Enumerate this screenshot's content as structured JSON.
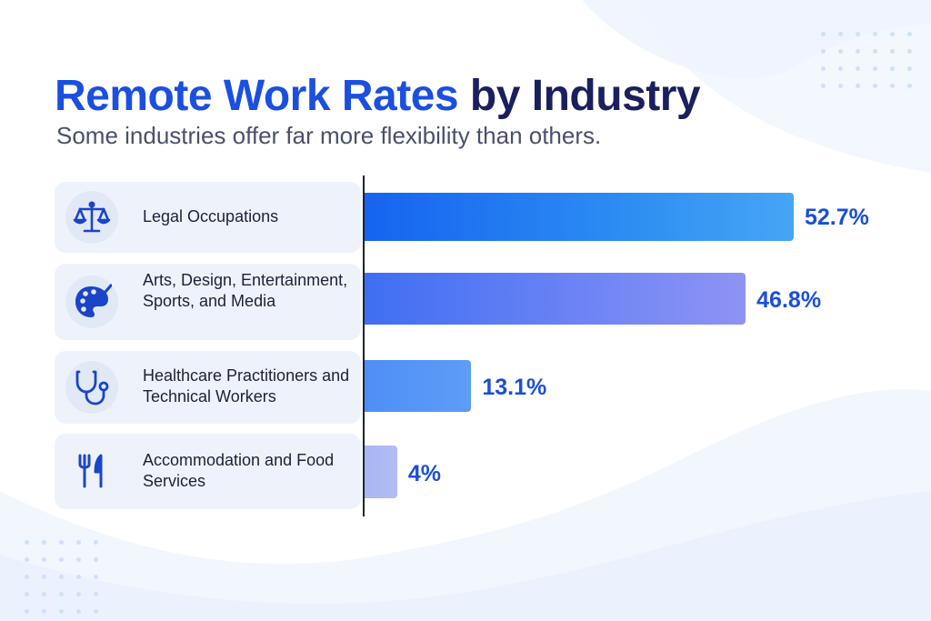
{
  "header": {
    "title_accent": "Remote Work Rates",
    "title_rest": " by Industry",
    "subtitle": "Some industries offer far more flexibility than others."
  },
  "chart_data": {
    "type": "bar",
    "orientation": "horizontal",
    "title": "Remote Work Rates by Industry",
    "subtitle": "Some industries offer far more flexibility than others.",
    "categories": [
      "Legal Occupations",
      "Arts, Design, Entertainment, Sports, and Media",
      "Healthcare Practitioners and Technical Workers",
      "Accommodation and Food Services"
    ],
    "values": [
      52.7,
      46.8,
      13.1,
      4
    ],
    "value_labels": [
      "52.7%",
      "46.8%",
      "13.1%",
      "4%"
    ],
    "unit": "%",
    "grid": false,
    "legend": "none",
    "icons": [
      "scales-of-justice-icon",
      "palette-icon",
      "stethoscope-icon",
      "fork-knife-icon"
    ],
    "colors": [
      "#1a6ef2",
      "#6f83f5",
      "#5596f6",
      "#aeb8f4"
    ]
  }
}
